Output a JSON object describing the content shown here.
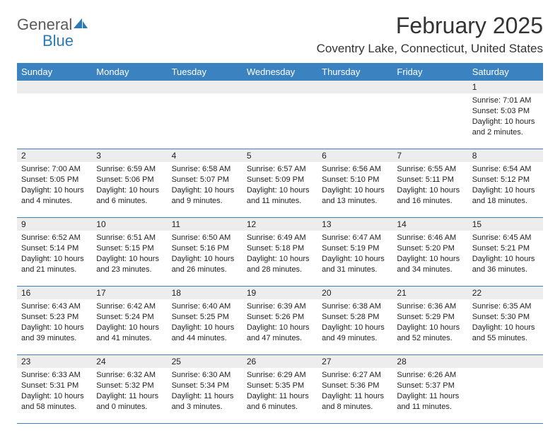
{
  "logo": {
    "text1": "General",
    "text2": "Blue",
    "icon_color": "#2a7ab8"
  },
  "header": {
    "month_title": "February 2025",
    "location": "Coventry Lake, Connecticut, United States"
  },
  "colors": {
    "header_bg": "#3b83c0",
    "header_text": "#ffffff",
    "row_divider": "#3b83c0",
    "num_row_bg": "#ededed",
    "body_text": "#222222"
  },
  "day_names": [
    "Sunday",
    "Monday",
    "Tuesday",
    "Wednesday",
    "Thursday",
    "Friday",
    "Saturday"
  ],
  "weeks": [
    {
      "nums": [
        "",
        "",
        "",
        "",
        "",
        "",
        "1"
      ],
      "cells": [
        {},
        {},
        {},
        {},
        {},
        {},
        {
          "sunrise": "Sunrise: 7:01 AM",
          "sunset": "Sunset: 5:03 PM",
          "daylight1": "Daylight: 10 hours",
          "daylight2": "and 2 minutes."
        }
      ]
    },
    {
      "nums": [
        "2",
        "3",
        "4",
        "5",
        "6",
        "7",
        "8"
      ],
      "cells": [
        {
          "sunrise": "Sunrise: 7:00 AM",
          "sunset": "Sunset: 5:05 PM",
          "daylight1": "Daylight: 10 hours",
          "daylight2": "and 4 minutes."
        },
        {
          "sunrise": "Sunrise: 6:59 AM",
          "sunset": "Sunset: 5:06 PM",
          "daylight1": "Daylight: 10 hours",
          "daylight2": "and 6 minutes."
        },
        {
          "sunrise": "Sunrise: 6:58 AM",
          "sunset": "Sunset: 5:07 PM",
          "daylight1": "Daylight: 10 hours",
          "daylight2": "and 9 minutes."
        },
        {
          "sunrise": "Sunrise: 6:57 AM",
          "sunset": "Sunset: 5:09 PM",
          "daylight1": "Daylight: 10 hours",
          "daylight2": "and 11 minutes."
        },
        {
          "sunrise": "Sunrise: 6:56 AM",
          "sunset": "Sunset: 5:10 PM",
          "daylight1": "Daylight: 10 hours",
          "daylight2": "and 13 minutes."
        },
        {
          "sunrise": "Sunrise: 6:55 AM",
          "sunset": "Sunset: 5:11 PM",
          "daylight1": "Daylight: 10 hours",
          "daylight2": "and 16 minutes."
        },
        {
          "sunrise": "Sunrise: 6:54 AM",
          "sunset": "Sunset: 5:12 PM",
          "daylight1": "Daylight: 10 hours",
          "daylight2": "and 18 minutes."
        }
      ]
    },
    {
      "nums": [
        "9",
        "10",
        "11",
        "12",
        "13",
        "14",
        "15"
      ],
      "cells": [
        {
          "sunrise": "Sunrise: 6:52 AM",
          "sunset": "Sunset: 5:14 PM",
          "daylight1": "Daylight: 10 hours",
          "daylight2": "and 21 minutes."
        },
        {
          "sunrise": "Sunrise: 6:51 AM",
          "sunset": "Sunset: 5:15 PM",
          "daylight1": "Daylight: 10 hours",
          "daylight2": "and 23 minutes."
        },
        {
          "sunrise": "Sunrise: 6:50 AM",
          "sunset": "Sunset: 5:16 PM",
          "daylight1": "Daylight: 10 hours",
          "daylight2": "and 26 minutes."
        },
        {
          "sunrise": "Sunrise: 6:49 AM",
          "sunset": "Sunset: 5:18 PM",
          "daylight1": "Daylight: 10 hours",
          "daylight2": "and 28 minutes."
        },
        {
          "sunrise": "Sunrise: 6:47 AM",
          "sunset": "Sunset: 5:19 PM",
          "daylight1": "Daylight: 10 hours",
          "daylight2": "and 31 minutes."
        },
        {
          "sunrise": "Sunrise: 6:46 AM",
          "sunset": "Sunset: 5:20 PM",
          "daylight1": "Daylight: 10 hours",
          "daylight2": "and 34 minutes."
        },
        {
          "sunrise": "Sunrise: 6:45 AM",
          "sunset": "Sunset: 5:21 PM",
          "daylight1": "Daylight: 10 hours",
          "daylight2": "and 36 minutes."
        }
      ]
    },
    {
      "nums": [
        "16",
        "17",
        "18",
        "19",
        "20",
        "21",
        "22"
      ],
      "cells": [
        {
          "sunrise": "Sunrise: 6:43 AM",
          "sunset": "Sunset: 5:23 PM",
          "daylight1": "Daylight: 10 hours",
          "daylight2": "and 39 minutes."
        },
        {
          "sunrise": "Sunrise: 6:42 AM",
          "sunset": "Sunset: 5:24 PM",
          "daylight1": "Daylight: 10 hours",
          "daylight2": "and 41 minutes."
        },
        {
          "sunrise": "Sunrise: 6:40 AM",
          "sunset": "Sunset: 5:25 PM",
          "daylight1": "Daylight: 10 hours",
          "daylight2": "and 44 minutes."
        },
        {
          "sunrise": "Sunrise: 6:39 AM",
          "sunset": "Sunset: 5:26 PM",
          "daylight1": "Daylight: 10 hours",
          "daylight2": "and 47 minutes."
        },
        {
          "sunrise": "Sunrise: 6:38 AM",
          "sunset": "Sunset: 5:28 PM",
          "daylight1": "Daylight: 10 hours",
          "daylight2": "and 49 minutes."
        },
        {
          "sunrise": "Sunrise: 6:36 AM",
          "sunset": "Sunset: 5:29 PM",
          "daylight1": "Daylight: 10 hours",
          "daylight2": "and 52 minutes."
        },
        {
          "sunrise": "Sunrise: 6:35 AM",
          "sunset": "Sunset: 5:30 PM",
          "daylight1": "Daylight: 10 hours",
          "daylight2": "and 55 minutes."
        }
      ]
    },
    {
      "nums": [
        "23",
        "24",
        "25",
        "26",
        "27",
        "28",
        ""
      ],
      "cells": [
        {
          "sunrise": "Sunrise: 6:33 AM",
          "sunset": "Sunset: 5:31 PM",
          "daylight1": "Daylight: 10 hours",
          "daylight2": "and 58 minutes."
        },
        {
          "sunrise": "Sunrise: 6:32 AM",
          "sunset": "Sunset: 5:32 PM",
          "daylight1": "Daylight: 11 hours",
          "daylight2": "and 0 minutes."
        },
        {
          "sunrise": "Sunrise: 6:30 AM",
          "sunset": "Sunset: 5:34 PM",
          "daylight1": "Daylight: 11 hours",
          "daylight2": "and 3 minutes."
        },
        {
          "sunrise": "Sunrise: 6:29 AM",
          "sunset": "Sunset: 5:35 PM",
          "daylight1": "Daylight: 11 hours",
          "daylight2": "and 6 minutes."
        },
        {
          "sunrise": "Sunrise: 6:27 AM",
          "sunset": "Sunset: 5:36 PM",
          "daylight1": "Daylight: 11 hours",
          "daylight2": "and 8 minutes."
        },
        {
          "sunrise": "Sunrise: 6:26 AM",
          "sunset": "Sunset: 5:37 PM",
          "daylight1": "Daylight: 11 hours",
          "daylight2": "and 11 minutes."
        },
        {}
      ]
    }
  ]
}
